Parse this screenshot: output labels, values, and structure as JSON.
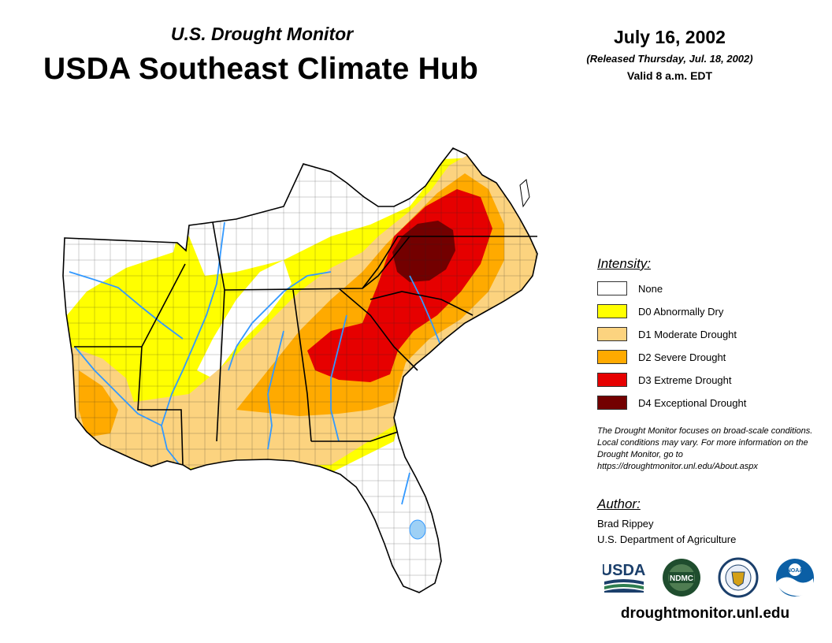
{
  "header": {
    "subtitle": "U.S. Drought Monitor",
    "title": "USDA Southeast Climate Hub",
    "date": "July 16, 2002",
    "released": "(Released Thursday, Jul. 18, 2002)",
    "valid": "Valid 8 a.m. EDT"
  },
  "legend": {
    "heading": "Intensity:",
    "items": [
      {
        "label": "None",
        "color": "#ffffff"
      },
      {
        "label": "D0 Abnormally Dry",
        "color": "#ffff00"
      },
      {
        "label": "D1 Moderate Drought",
        "color": "#fcd37f"
      },
      {
        "label": "D2 Severe Drought",
        "color": "#ffaa00"
      },
      {
        "label": "D3 Extreme Drought",
        "color": "#e60000"
      },
      {
        "label": "D4 Exceptional Drought",
        "color": "#730000"
      }
    ]
  },
  "note": "The Drought Monitor focuses on broad-scale conditions. Local conditions may vary. For more information on the Drought Monitor, go to https://droughtmonitor.unl.edu/About.aspx",
  "author": {
    "heading": "Author:",
    "name": "Brad Rippey",
    "organization": "U.S. Department of Agriculture"
  },
  "logos": {
    "usda": "USDA",
    "ndmc": "NDMC",
    "noaa": "NOAA",
    "icons": [
      "usda-logo-icon",
      "ndmc-logo-icon",
      "doc-seal-icon",
      "noaa-logo-icon"
    ]
  },
  "url": "droughtmonitor.unl.edu"
}
